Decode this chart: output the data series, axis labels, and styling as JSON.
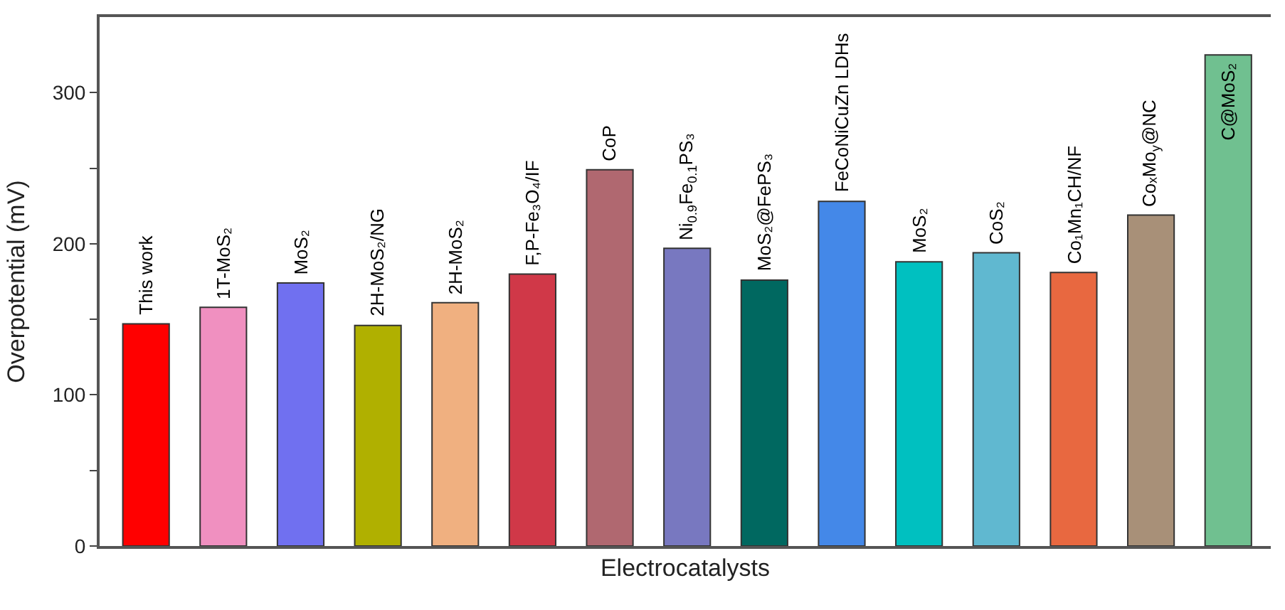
{
  "chart_data": {
    "type": "bar",
    "xlabel": "Electrocatalysts",
    "ylabel": "Overpotential (mV)",
    "categories": [
      "This work",
      "1T-MoS₂",
      "MoS₂",
      "2H-MoS₂/NG",
      "2H-MoS₂",
      "F,P-Fe₃O₄/IF",
      "CoP",
      "Ni$_{0.9}$Fe$_{0.1}$PS₃",
      "MoS₂@FePS₃",
      "FeCoNiCuZn LDHs",
      "MoS₂",
      "CoS₂",
      "Co₁Mn₁CH/NF",
      "CoₓMo$_{y}$@NC",
      "C@MoS₂"
    ],
    "values": [
      147,
      158,
      174,
      146,
      161,
      180,
      249,
      197,
      176,
      228,
      188,
      194,
      181,
      219,
      325
    ],
    "colors": [
      "#ff0000",
      "#f090c0",
      "#7070f0",
      "#b0b000",
      "#f0b080",
      "#d03848",
      "#b06870",
      "#7878c0",
      "#006860",
      "#4488e8",
      "#00c0c0",
      "#60b8d0",
      "#e86840",
      "#a89078",
      "#70c090"
    ],
    "ylim": [
      0,
      350
    ],
    "yticks": [
      0,
      {
        "value": 50,
        "label": null
      },
      100,
      {
        "value": 150,
        "label": null
      },
      200,
      {
        "value": 250,
        "label": null
      },
      300
    ],
    "tick_labels": "y"
  }
}
